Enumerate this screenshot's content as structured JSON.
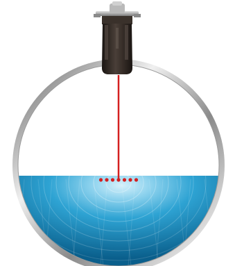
{
  "diagram": {
    "kind": "radar-level-sensor-on-vessel",
    "components": [
      "sensor-housing",
      "mounting-bracket",
      "measurement-beam",
      "tank-shell",
      "liquid",
      "reflection-points"
    ],
    "colors": {
      "beam": "#d42020",
      "reflection": "#d42020",
      "sensor_body": "#2c2420",
      "bracket": "#9a9a9a",
      "shell_outer": "#6f6f6f",
      "shell_highlight": "#e8e8e8",
      "liquid_dark": "#0e6f9c",
      "liquid_light": "#bfe6f6",
      "background": "#ffffff"
    },
    "reflection_point_count": 7,
    "fill_level_fraction": 0.45
  }
}
